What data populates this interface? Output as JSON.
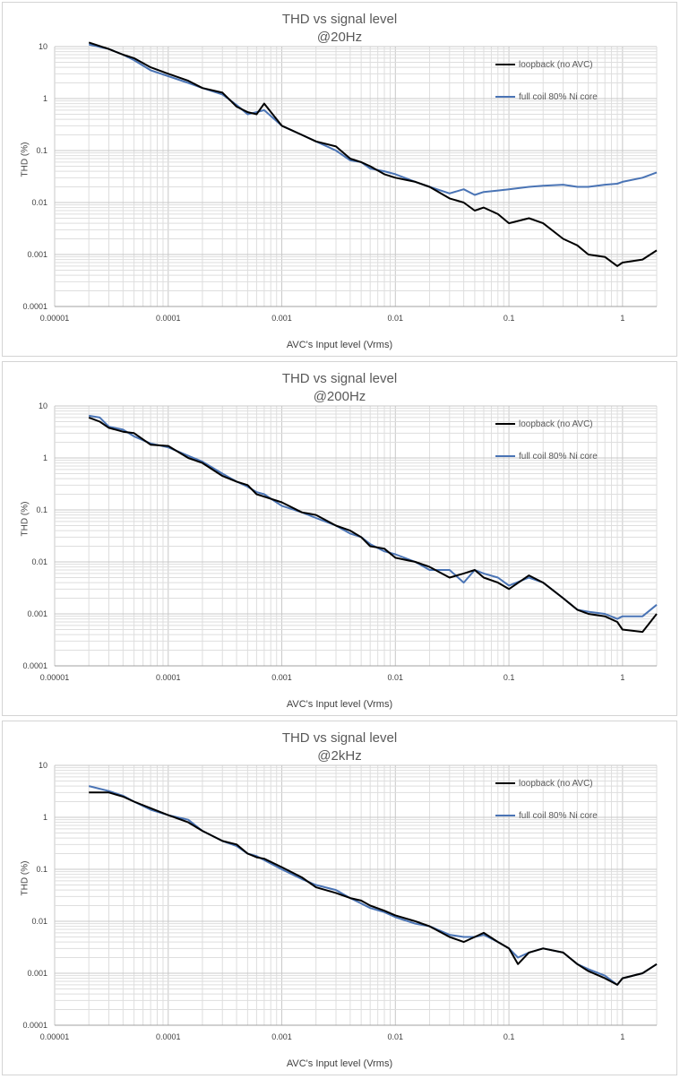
{
  "chart_data": [
    {
      "type": "line",
      "title": "THD vs signal level",
      "subtitle": "@20Hz",
      "xlabel": "AVC's Input level (Vrms)",
      "ylabel": "THD (%)",
      "xscale": "log",
      "yscale": "log",
      "xlim": [
        1e-05,
        2
      ],
      "ylim": [
        0.0001,
        10
      ],
      "xticks": [
        "0.00001",
        "0.0001",
        "0.001",
        "0.01",
        "0.1",
        "1"
      ],
      "yticks": [
        "10",
        "1",
        "0.1",
        "0.01",
        "0.001",
        "0.0001"
      ],
      "grid": true,
      "legend_position": "top-right",
      "series": [
        {
          "name": "loopback (no AVC)",
          "color": "#000000",
          "x": [
            2e-05,
            3e-05,
            4e-05,
            5e-05,
            7e-05,
            0.0001,
            0.00015,
            0.0002,
            0.0003,
            0.0004,
            0.0005,
            0.0006,
            0.0007,
            0.001,
            0.0015,
            0.002,
            0.003,
            0.004,
            0.005,
            0.006,
            0.008,
            0.01,
            0.015,
            0.02,
            0.03,
            0.04,
            0.05,
            0.06,
            0.08,
            0.1,
            0.15,
            0.2,
            0.3,
            0.4,
            0.5,
            0.7,
            0.9,
            1.0,
            1.5,
            2.0
          ],
          "y": [
            12,
            9,
            7,
            6,
            4,
            3,
            2.2,
            1.6,
            1.3,
            0.7,
            0.55,
            0.5,
            0.8,
            0.3,
            0.2,
            0.15,
            0.12,
            0.07,
            0.06,
            0.05,
            0.035,
            0.03,
            0.025,
            0.02,
            0.012,
            0.01,
            0.007,
            0.008,
            0.006,
            0.004,
            0.005,
            0.004,
            0.002,
            0.0015,
            0.001,
            0.0009,
            0.0006,
            0.0007,
            0.0008,
            0.0012
          ]
        },
        {
          "name": "full coil 80% Ni core",
          "color": "#4a74b5",
          "x": [
            2e-05,
            3e-05,
            4e-05,
            5e-05,
            7e-05,
            0.0001,
            0.00015,
            0.0002,
            0.0003,
            0.0004,
            0.0005,
            0.0006,
            0.0007,
            0.001,
            0.0015,
            0.002,
            0.003,
            0.004,
            0.005,
            0.006,
            0.008,
            0.01,
            0.015,
            0.02,
            0.03,
            0.04,
            0.05,
            0.06,
            0.08,
            0.1,
            0.15,
            0.2,
            0.3,
            0.4,
            0.5,
            0.7,
            0.9,
            1.0,
            1.5,
            2.0
          ],
          "y": [
            11,
            9,
            7,
            5.5,
            3.5,
            2.7,
            2.0,
            1.6,
            1.2,
            0.75,
            0.5,
            0.55,
            0.6,
            0.3,
            0.2,
            0.15,
            0.1,
            0.065,
            0.06,
            0.045,
            0.04,
            0.035,
            0.025,
            0.02,
            0.015,
            0.018,
            0.014,
            0.016,
            0.017,
            0.018,
            0.02,
            0.021,
            0.022,
            0.02,
            0.02,
            0.022,
            0.023,
            0.025,
            0.03,
            0.038
          ]
        }
      ]
    },
    {
      "type": "line",
      "title": "THD vs signal level",
      "subtitle": "@200Hz",
      "xlabel": "AVC's Input level (Vrms)",
      "ylabel": "THD (%)",
      "xscale": "log",
      "yscale": "log",
      "xlim": [
        1e-05,
        2
      ],
      "ylim": [
        0.0001,
        10
      ],
      "xticks": [
        "0.00001",
        "0.0001",
        "0.001",
        "0.01",
        "0.1",
        "1"
      ],
      "yticks": [
        "10",
        "1",
        "0.1",
        "0.01",
        "0.001",
        "0.0001"
      ],
      "grid": true,
      "legend_position": "top-right",
      "series": [
        {
          "name": "loopback (no AVC)",
          "color": "#000000",
          "x": [
            2e-05,
            2.5e-05,
            3e-05,
            4e-05,
            5e-05,
            7e-05,
            0.0001,
            0.00015,
            0.0002,
            0.0003,
            0.0004,
            0.0005,
            0.0006,
            0.0007,
            0.001,
            0.0015,
            0.002,
            0.003,
            0.004,
            0.005,
            0.006,
            0.008,
            0.01,
            0.015,
            0.02,
            0.03,
            0.04,
            0.05,
            0.06,
            0.08,
            0.1,
            0.15,
            0.2,
            0.3,
            0.4,
            0.5,
            0.7,
            0.9,
            1.0,
            1.5,
            2.0
          ],
          "y": [
            6,
            5,
            3.8,
            3.2,
            3,
            1.8,
            1.7,
            1,
            0.8,
            0.45,
            0.35,
            0.3,
            0.2,
            0.18,
            0.14,
            0.09,
            0.08,
            0.05,
            0.04,
            0.03,
            0.02,
            0.018,
            0.012,
            0.01,
            0.008,
            0.005,
            0.006,
            0.007,
            0.005,
            0.004,
            0.003,
            0.0055,
            0.004,
            0.002,
            0.0012,
            0.001,
            0.0009,
            0.0007,
            0.0005,
            0.00045,
            0.001
          ]
        },
        {
          "name": "full coil 80% Ni core",
          "color": "#4a74b5",
          "x": [
            2e-05,
            2.5e-05,
            3e-05,
            4e-05,
            5e-05,
            7e-05,
            0.0001,
            0.00015,
            0.0002,
            0.0003,
            0.0004,
            0.0005,
            0.0006,
            0.0007,
            0.001,
            0.0015,
            0.002,
            0.003,
            0.004,
            0.005,
            0.006,
            0.008,
            0.01,
            0.015,
            0.02,
            0.03,
            0.04,
            0.05,
            0.06,
            0.08,
            0.1,
            0.15,
            0.2,
            0.3,
            0.4,
            0.5,
            0.7,
            0.9,
            1.0,
            1.5,
            2.0
          ],
          "y": [
            6.5,
            6,
            4,
            3.5,
            2.6,
            1.9,
            1.6,
            1.1,
            0.85,
            0.5,
            0.35,
            0.28,
            0.22,
            0.2,
            0.12,
            0.09,
            0.07,
            0.05,
            0.035,
            0.03,
            0.022,
            0.016,
            0.014,
            0.01,
            0.007,
            0.007,
            0.004,
            0.007,
            0.006,
            0.005,
            0.0035,
            0.005,
            0.004,
            0.002,
            0.0012,
            0.0011,
            0.001,
            0.0008,
            0.0009,
            0.0009,
            0.0015
          ]
        }
      ]
    },
    {
      "type": "line",
      "title": "THD vs signal level",
      "subtitle": "@2kHz",
      "xlabel": "AVC's Input level (Vrms)",
      "ylabel": "THD (%)",
      "xscale": "log",
      "yscale": "log",
      "xlim": [
        1e-05,
        2
      ],
      "ylim": [
        0.0001,
        10
      ],
      "xticks": [
        "0.00001",
        "0.0001",
        "0.001",
        "0.01",
        "0.1",
        "1"
      ],
      "yticks": [
        "10",
        "1",
        "0.1",
        "0.01",
        "0.001",
        "0.0001"
      ],
      "grid": true,
      "legend_position": "top-right",
      "series": [
        {
          "name": "loopback (no AVC)",
          "color": "#000000",
          "x": [
            2e-05,
            3e-05,
            4e-05,
            5e-05,
            7e-05,
            0.0001,
            0.00015,
            0.0002,
            0.0003,
            0.0004,
            0.0005,
            0.0006,
            0.0007,
            0.001,
            0.0015,
            0.002,
            0.003,
            0.004,
            0.005,
            0.006,
            0.008,
            0.01,
            0.015,
            0.02,
            0.03,
            0.04,
            0.05,
            0.06,
            0.08,
            0.1,
            0.12,
            0.15,
            0.2,
            0.3,
            0.4,
            0.5,
            0.7,
            0.9,
            1.0,
            1.5,
            2.0
          ],
          "y": [
            3,
            3,
            2.5,
            2,
            1.5,
            1.1,
            0.8,
            0.55,
            0.35,
            0.3,
            0.2,
            0.17,
            0.16,
            0.11,
            0.07,
            0.045,
            0.035,
            0.028,
            0.025,
            0.02,
            0.016,
            0.013,
            0.01,
            0.008,
            0.005,
            0.004,
            0.005,
            0.006,
            0.004,
            0.003,
            0.0015,
            0.0025,
            0.003,
            0.0025,
            0.0015,
            0.0011,
            0.0008,
            0.0006,
            0.0008,
            0.001,
            0.0015
          ]
        },
        {
          "name": "full coil 80% Ni core",
          "color": "#4a74b5",
          "x": [
            2e-05,
            3e-05,
            4e-05,
            5e-05,
            7e-05,
            0.0001,
            0.00015,
            0.0002,
            0.0003,
            0.0004,
            0.0005,
            0.0006,
            0.0007,
            0.001,
            0.0015,
            0.002,
            0.003,
            0.004,
            0.005,
            0.006,
            0.008,
            0.01,
            0.015,
            0.02,
            0.03,
            0.04,
            0.05,
            0.06,
            0.08,
            0.1,
            0.12,
            0.15,
            0.2,
            0.3,
            0.4,
            0.5,
            0.7,
            0.9,
            1.0,
            1.5,
            2.0
          ],
          "y": [
            4,
            3.2,
            2.6,
            2,
            1.4,
            1.1,
            0.9,
            0.55,
            0.35,
            0.28,
            0.2,
            0.18,
            0.15,
            0.1,
            0.065,
            0.05,
            0.04,
            0.028,
            0.022,
            0.018,
            0.015,
            0.012,
            0.009,
            0.008,
            0.0055,
            0.005,
            0.005,
            0.0055,
            0.004,
            0.003,
            0.002,
            0.0025,
            0.003,
            0.0025,
            0.0015,
            0.0012,
            0.0009,
            0.0006,
            0.0008,
            0.001,
            0.0015
          ]
        }
      ]
    }
  ]
}
